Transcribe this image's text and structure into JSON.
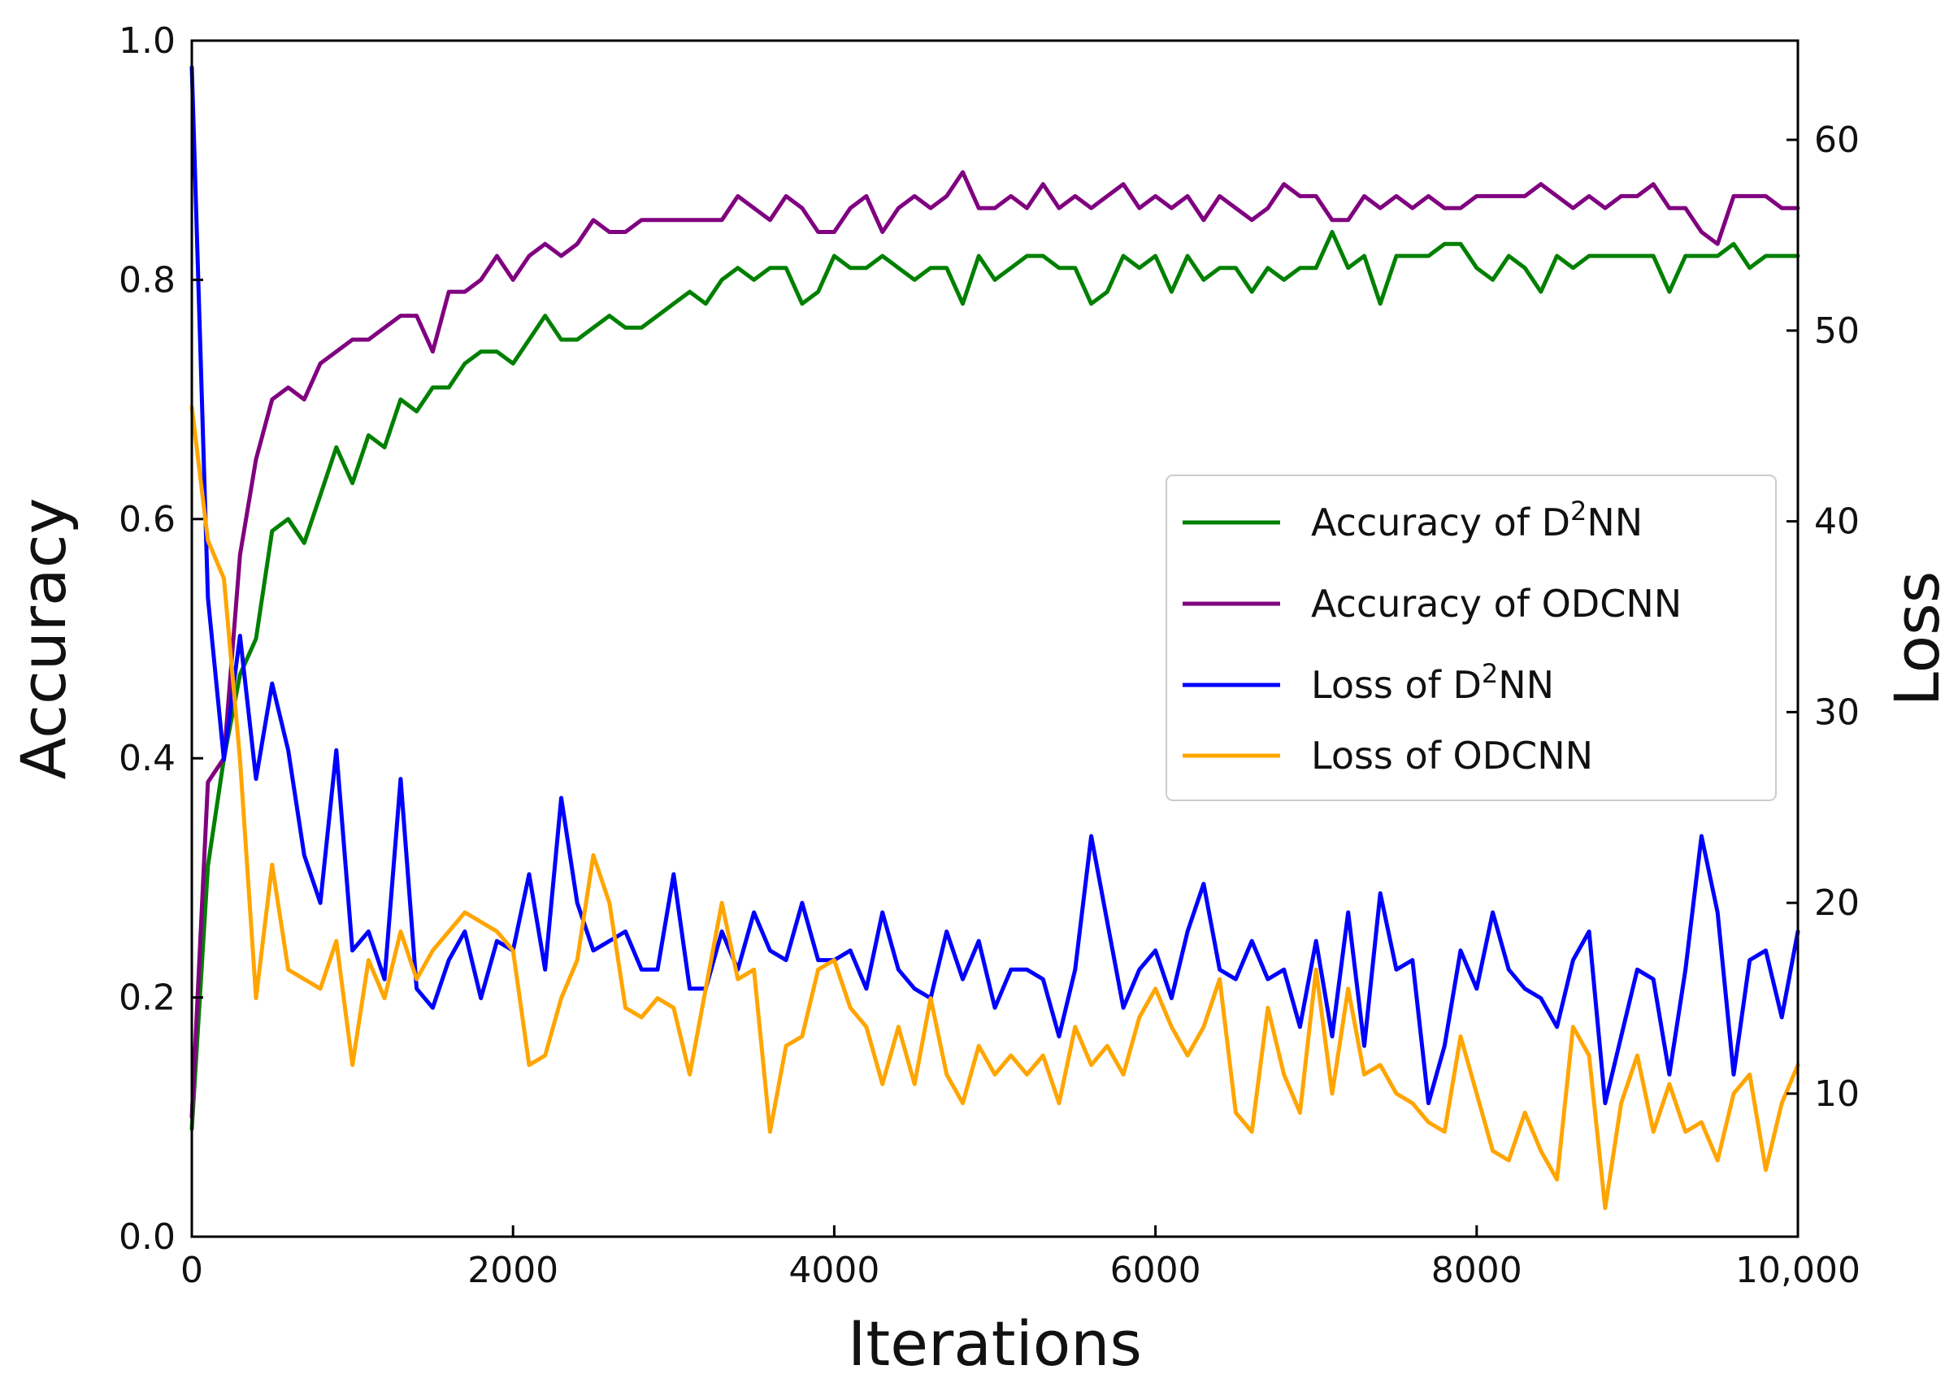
{
  "chart_data": {
    "type": "line",
    "title": "",
    "xlabel": "Iterations",
    "ylabel_left": "Accuracy",
    "ylabel_right": "Loss",
    "xlim": [
      0,
      10000
    ],
    "ylim_left": [
      0,
      1.0
    ],
    "ylim_right": [
      2.5,
      65.2
    ],
    "grid": false,
    "legend_position": "center-right",
    "x_ticks": [
      0,
      2000,
      4000,
      6000,
      8000,
      10000
    ],
    "x_tick_labels": [
      "0",
      "2000",
      "4000",
      "6000",
      "8000",
      "10,000"
    ],
    "y_left_ticks": [
      0.0,
      0.2,
      0.4,
      0.6,
      0.8,
      1.0
    ],
    "y_left_tick_labels": [
      "0.0",
      "0.2",
      "0.4",
      "0.6",
      "0.8",
      "1.0"
    ],
    "y_right_ticks": [
      10,
      20,
      30,
      40,
      50,
      60
    ],
    "y_right_tick_labels": [
      "10",
      "20",
      "30",
      "40",
      "50",
      "60"
    ],
    "x": [
      0,
      100,
      200,
      300,
      400,
      500,
      600,
      700,
      800,
      900,
      1000,
      1100,
      1200,
      1300,
      1400,
      1500,
      1600,
      1700,
      1800,
      1900,
      2000,
      2100,
      2200,
      2300,
      2400,
      2500,
      2600,
      2700,
      2800,
      2900,
      3000,
      3100,
      3200,
      3300,
      3400,
      3500,
      3600,
      3700,
      3800,
      3900,
      4000,
      4100,
      4200,
      4300,
      4400,
      4500,
      4600,
      4700,
      4800,
      4900,
      5000,
      5100,
      5200,
      5300,
      5400,
      5500,
      5600,
      5700,
      5800,
      5900,
      6000,
      6100,
      6200,
      6300,
      6400,
      6500,
      6600,
      6700,
      6800,
      6900,
      7000,
      7100,
      7200,
      7300,
      7400,
      7500,
      7600,
      7700,
      7800,
      7900,
      8000,
      8100,
      8200,
      8300,
      8400,
      8500,
      8600,
      8700,
      8800,
      8900,
      9000,
      9100,
      9200,
      9300,
      9400,
      9500,
      9600,
      9700,
      9800,
      9900,
      10000
    ],
    "series": [
      {
        "name": "Accuracy of D²NN",
        "legend_base": "Accuracy of D",
        "legend_sup": "2",
        "legend_tail": "NN",
        "axis": "left",
        "color": "#008000",
        "values": [
          0.09,
          0.31,
          0.4,
          0.47,
          0.5,
          0.59,
          0.6,
          0.58,
          0.62,
          0.66,
          0.63,
          0.67,
          0.66,
          0.7,
          0.69,
          0.71,
          0.71,
          0.73,
          0.74,
          0.74,
          0.73,
          0.75,
          0.77,
          0.75,
          0.75,
          0.76,
          0.77,
          0.76,
          0.76,
          0.77,
          0.78,
          0.79,
          0.78,
          0.8,
          0.81,
          0.8,
          0.81,
          0.81,
          0.78,
          0.79,
          0.82,
          0.81,
          0.81,
          0.82,
          0.81,
          0.8,
          0.81,
          0.81,
          0.78,
          0.82,
          0.8,
          0.81,
          0.82,
          0.82,
          0.81,
          0.81,
          0.78,
          0.79,
          0.82,
          0.81,
          0.82,
          0.79,
          0.82,
          0.8,
          0.81,
          0.81,
          0.79,
          0.81,
          0.8,
          0.81,
          0.81,
          0.84,
          0.81,
          0.82,
          0.78,
          0.82,
          0.82,
          0.82,
          0.83,
          0.83,
          0.81,
          0.8,
          0.82,
          0.81,
          0.79,
          0.82,
          0.81,
          0.82,
          0.82,
          0.82,
          0.82,
          0.82,
          0.79,
          0.82,
          0.82,
          0.82,
          0.83,
          0.81,
          0.82,
          0.82,
          0.82
        ]
      },
      {
        "name": "Accuracy of ODCNN",
        "legend_base": "Accuracy of ODCNN",
        "legend_sup": "",
        "legend_tail": "",
        "axis": "left",
        "color": "#800080",
        "values": [
          0.1,
          0.38,
          0.4,
          0.57,
          0.65,
          0.7,
          0.71,
          0.7,
          0.73,
          0.74,
          0.75,
          0.75,
          0.76,
          0.77,
          0.77,
          0.74,
          0.79,
          0.79,
          0.8,
          0.82,
          0.8,
          0.82,
          0.83,
          0.82,
          0.83,
          0.85,
          0.84,
          0.84,
          0.85,
          0.85,
          0.85,
          0.85,
          0.85,
          0.85,
          0.87,
          0.86,
          0.85,
          0.87,
          0.86,
          0.84,
          0.84,
          0.86,
          0.87,
          0.84,
          0.86,
          0.87,
          0.86,
          0.87,
          0.89,
          0.86,
          0.86,
          0.87,
          0.86,
          0.88,
          0.86,
          0.87,
          0.86,
          0.87,
          0.88,
          0.86,
          0.87,
          0.86,
          0.87,
          0.85,
          0.87,
          0.86,
          0.85,
          0.86,
          0.88,
          0.87,
          0.87,
          0.85,
          0.85,
          0.87,
          0.86,
          0.87,
          0.86,
          0.87,
          0.86,
          0.86,
          0.87,
          0.87,
          0.87,
          0.87,
          0.88,
          0.87,
          0.86,
          0.87,
          0.86,
          0.87,
          0.87,
          0.88,
          0.86,
          0.86,
          0.84,
          0.83,
          0.87,
          0.87,
          0.87,
          0.86,
          0.86
        ]
      },
      {
        "name": "Loss of D²NN",
        "legend_base": "Loss of D",
        "legend_sup": "2",
        "legend_tail": "NN",
        "axis": "right",
        "color": "#0000ff",
        "values": [
          63.8,
          36.0,
          27.5,
          34.0,
          26.5,
          31.5,
          28.0,
          22.5,
          20.0,
          28.0,
          17.5,
          18.5,
          16.0,
          26.5,
          15.5,
          14.5,
          17.0,
          18.5,
          15.0,
          18.0,
          17.5,
          21.5,
          16.5,
          25.5,
          20.0,
          17.5,
          18.0,
          18.5,
          16.5,
          16.5,
          21.5,
          15.5,
          15.5,
          18.5,
          16.5,
          19.5,
          17.5,
          17.0,
          20.0,
          17.0,
          17.0,
          17.5,
          15.5,
          19.5,
          16.5,
          15.5,
          15.0,
          18.5,
          16.0,
          18.0,
          14.5,
          16.5,
          16.5,
          16.0,
          13.0,
          16.5,
          23.5,
          19.0,
          14.5,
          16.5,
          17.5,
          15.0,
          18.5,
          21.0,
          16.5,
          16.0,
          18.0,
          16.0,
          16.5,
          13.5,
          18.0,
          13.0,
          19.5,
          12.5,
          20.5,
          16.5,
          17.0,
          9.5,
          12.5,
          17.5,
          15.5,
          19.5,
          16.5,
          15.5,
          15.0,
          13.5,
          17.0,
          18.5,
          9.5,
          13.0,
          16.5,
          16.0,
          11.0,
          16.5,
          23.5,
          19.5,
          11.0,
          17.0,
          17.5,
          14.0,
          18.5
        ]
      },
      {
        "name": "Loss of ODCNN",
        "legend_base": "Loss of ODCNN",
        "legend_sup": "",
        "legend_tail": "",
        "axis": "right",
        "color": "#ffa500",
        "values": [
          46.0,
          39.0,
          37.0,
          27.5,
          15.0,
          22.0,
          16.5,
          16.0,
          15.5,
          18.0,
          11.5,
          17.0,
          15.0,
          18.5,
          16.0,
          17.5,
          18.5,
          19.5,
          19.0,
          18.5,
          17.5,
          11.5,
          12.0,
          15.0,
          17.0,
          22.5,
          20.0,
          14.5,
          14.0,
          15.0,
          14.5,
          11.0,
          15.5,
          20.0,
          16.0,
          16.5,
          8.0,
          12.5,
          13.0,
          16.5,
          17.0,
          14.5,
          13.5,
          10.5,
          13.5,
          10.5,
          15.0,
          11.0,
          9.5,
          12.5,
          11.0,
          12.0,
          11.0,
          12.0,
          9.5,
          13.5,
          11.5,
          12.5,
          11.0,
          14.0,
          15.5,
          13.5,
          12.0,
          13.5,
          16.0,
          9.0,
          8.0,
          14.5,
          11.0,
          9.0,
          16.5,
          10.0,
          15.5,
          11.0,
          11.5,
          10.0,
          9.5,
          8.5,
          8.0,
          13.0,
          10.0,
          7.0,
          6.5,
          9.0,
          7.0,
          5.5,
          13.5,
          12.0,
          4.0,
          9.5,
          12.0,
          8.0,
          10.5,
          8.0,
          8.5,
          6.5,
          10.0,
          11.0,
          6.0,
          9.5,
          11.5
        ]
      }
    ]
  }
}
